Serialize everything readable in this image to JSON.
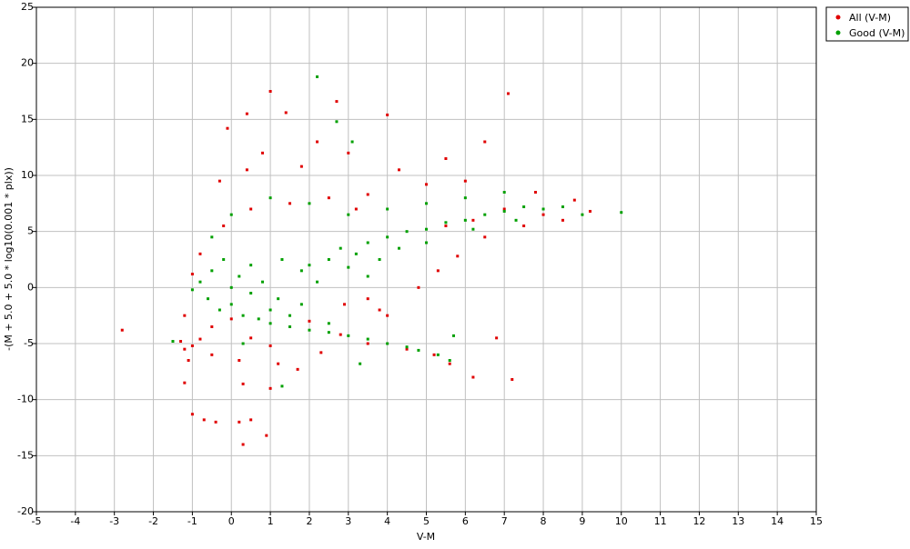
{
  "chart_data": {
    "type": "scatter",
    "xlabel": "V-M",
    "ylabel": "-(M + 5.0 + 5.0 * log10(0.001 * plx))",
    "xlim": [
      -5,
      15
    ],
    "ylim": [
      -20,
      25
    ],
    "xticks": [
      -5,
      -4,
      -3,
      -2,
      -1,
      0,
      1,
      2,
      3,
      4,
      5,
      6,
      7,
      8,
      9,
      10,
      11,
      12,
      13,
      14,
      15
    ],
    "yticks": [
      -20,
      -15,
      -10,
      -5,
      0,
      5,
      10,
      15,
      20,
      25
    ],
    "grid": true,
    "legend": "right",
    "series": [
      {
        "name": "All (V-M)",
        "color": "#e00000",
        "x": [
          -2.8,
          -1.3,
          -1.2,
          -1.0,
          -0.8,
          -1.1,
          -1.2,
          -1.0,
          -0.7,
          -0.4,
          0.2,
          0.3,
          0.9,
          0.5,
          1.0,
          0.3,
          -0.5,
          0.2,
          1.2,
          1.7,
          2.3,
          0.5,
          1.0,
          3.5,
          4.5,
          5.2,
          5.6,
          6.2,
          7.2,
          6.8,
          4.0,
          3.5,
          4.8,
          5.3,
          5.8,
          6.5,
          7.5,
          8.5,
          9.2,
          8.8,
          7.8,
          6.0,
          5.0,
          3.5,
          2.5,
          1.5,
          0.5,
          -0.2,
          -0.8,
          -1.0,
          -1.2,
          -0.3,
          0.4,
          0.8,
          1.4,
          0.4,
          -0.1,
          1.0,
          2.7,
          4.0,
          7.1,
          6.5,
          5.5,
          4.3,
          3.0,
          2.2,
          1.8,
          3.2,
          7.0,
          8.0,
          6.2,
          5.5,
          2.0,
          1.5,
          2.8,
          0.0,
          -0.5,
          2.9,
          3.8
        ],
        "values": [
          -3.8,
          -4.8,
          -5.5,
          -5.2,
          -4.6,
          -6.5,
          -8.5,
          -11.3,
          -11.8,
          -12,
          -12,
          -14,
          -13.2,
          -11.8,
          -9,
          -8.6,
          -6,
          -6.5,
          -6.8,
          -7.3,
          -5.8,
          -4.5,
          -5.2,
          -5.0,
          -5.5,
          -6.0,
          -6.8,
          -8.0,
          -8.2,
          -4.5,
          -2.5,
          -1.0,
          0.0,
          1.5,
          2.8,
          4.5,
          5.5,
          6.0,
          6.8,
          7.8,
          8.5,
          9.5,
          9.2,
          8.3,
          8.0,
          7.5,
          7.0,
          5.5,
          3.0,
          1.2,
          -2.5,
          9.5,
          10.5,
          12.0,
          15.6,
          15.5,
          14.2,
          17.5,
          16.6,
          15.4,
          17.3,
          13.0,
          11.5,
          10.5,
          12.0,
          13.0,
          10.8,
          7.0,
          7.0,
          6.5,
          6.0,
          5.5,
          -3.0,
          -3.5,
          -4.2,
          -2.8,
          -3.5,
          -1.5,
          -2.0
        ]
      },
      {
        "name": "Good (V-M)",
        "color": "#00a000",
        "x": [
          -0.8,
          -0.6,
          -0.5,
          -0.3,
          -0.2,
          0,
          0,
          0.2,
          0.3,
          0.5,
          0.5,
          0.7,
          0.8,
          1,
          1,
          1.2,
          1.3,
          1.5,
          1.5,
          1.8,
          2,
          2,
          2.2,
          2.5,
          2.5,
          2.8,
          3,
          3,
          3.2,
          3.5,
          3.5,
          3.8,
          4,
          4,
          4.3,
          4.5,
          4.5,
          4.8,
          5,
          5,
          5.3,
          5.5,
          5.6,
          6,
          6.2,
          6.5,
          7,
          7.3,
          7.5,
          8,
          8.5,
          9,
          10,
          2.2,
          2.7,
          3.1,
          0,
          -0.5,
          1,
          2,
          3,
          4,
          5,
          6,
          7,
          -1.5,
          0.3,
          1.3,
          5.7,
          3.3,
          2.5,
          1.8,
          3.5,
          -1
        ],
        "values": [
          0.5,
          -1,
          1.5,
          -2,
          2.5,
          0,
          -1.5,
          1,
          -2.5,
          -0.5,
          2,
          -2.8,
          0.5,
          -2,
          -3.2,
          -1,
          2.5,
          -2.5,
          -3.5,
          1.5,
          -3.8,
          2,
          0.5,
          -4.0,
          2.5,
          3.5,
          -4.3,
          1.8,
          3,
          -4.6,
          4,
          2.5,
          -5,
          4.5,
          3.5,
          -5.3,
          5,
          -5.6,
          5.2,
          4,
          -6,
          5.8,
          -6.5,
          6,
          5.2,
          6.5,
          6.8,
          6,
          7.2,
          7,
          7.2,
          6.5,
          6.7,
          18.8,
          14.8,
          13,
          6.5,
          4.5,
          8,
          7.5,
          6.5,
          7,
          7.5,
          8,
          8.5,
          -4.8,
          -5.0,
          -8.8,
          -4.3,
          -6.8,
          -3.2,
          -1.5,
          1.0,
          -0.2
        ]
      }
    ]
  }
}
